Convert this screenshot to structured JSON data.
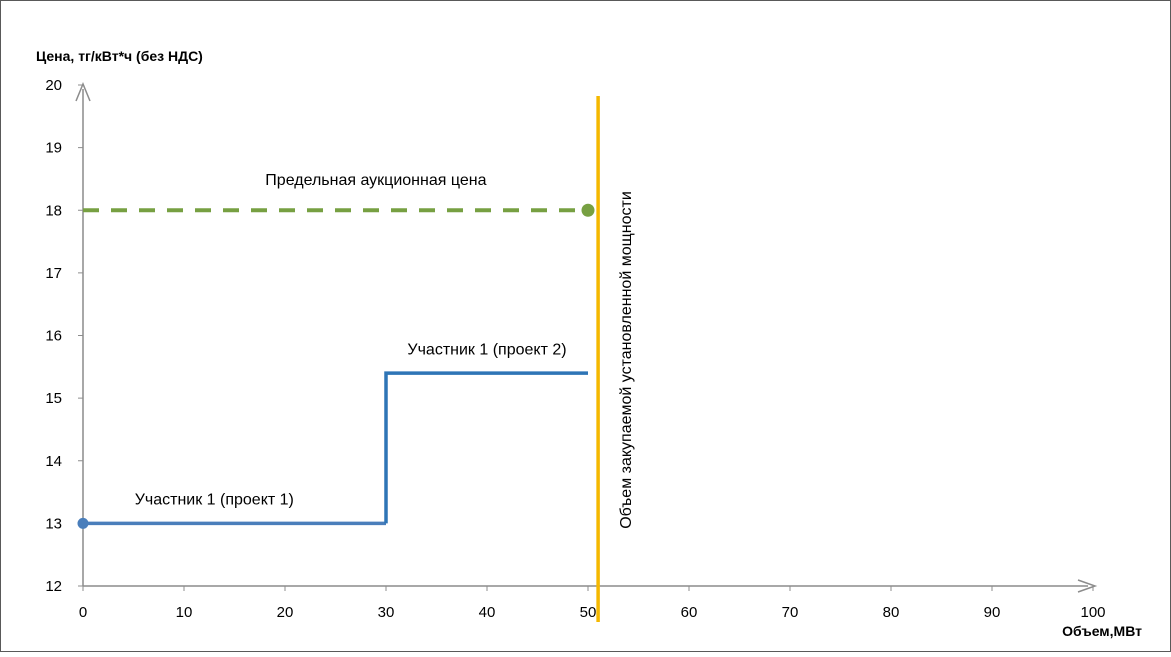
{
  "chart_data": {
    "type": "line",
    "ylabel": "Цена, тг/кВт*ч (без НДС)",
    "xlabel": "Объем,МВт",
    "xlim": [
      0,
      100
    ],
    "ylim": [
      12,
      20
    ],
    "x_ticks": [
      0,
      10,
      20,
      30,
      40,
      50,
      60,
      70,
      80,
      90,
      100
    ],
    "y_ticks": [
      12,
      13,
      14,
      15,
      16,
      17,
      18,
      19,
      20
    ],
    "grid": false,
    "legend": "none",
    "series": [
      {
        "name": "Участник 1 (проект 1)",
        "points": [
          [
            0,
            13
          ],
          [
            30,
            13
          ]
        ],
        "color": "#4a7ebb",
        "style": "solid"
      },
      {
        "name": "Участник 1 (проект 2)",
        "points": [
          [
            30,
            13
          ],
          [
            30,
            15.4
          ],
          [
            50,
            15.4
          ]
        ],
        "color": "#2e75b6",
        "style": "solid"
      },
      {
        "name": "Предельная аукционная цена",
        "points": [
          [
            0,
            18
          ],
          [
            50,
            18
          ]
        ],
        "color": "#77a042",
        "style": "dashed"
      }
    ],
    "vertical_line": {
      "x": 51,
      "label": "Объем закупаемой установленной мощности",
      "color": "#f5b800"
    },
    "annotations": [
      {
        "text": "Участник 1 (проект 1)",
        "x": 13,
        "y": 13.3
      },
      {
        "text": "Участник 1 (проект 2)",
        "x": 40,
        "y": 15.7
      },
      {
        "text": "Предельная аукционная цена",
        "x": 29,
        "y": 18.4
      }
    ],
    "axis_color": "#8c8c8c",
    "frame_color": "#595959"
  }
}
